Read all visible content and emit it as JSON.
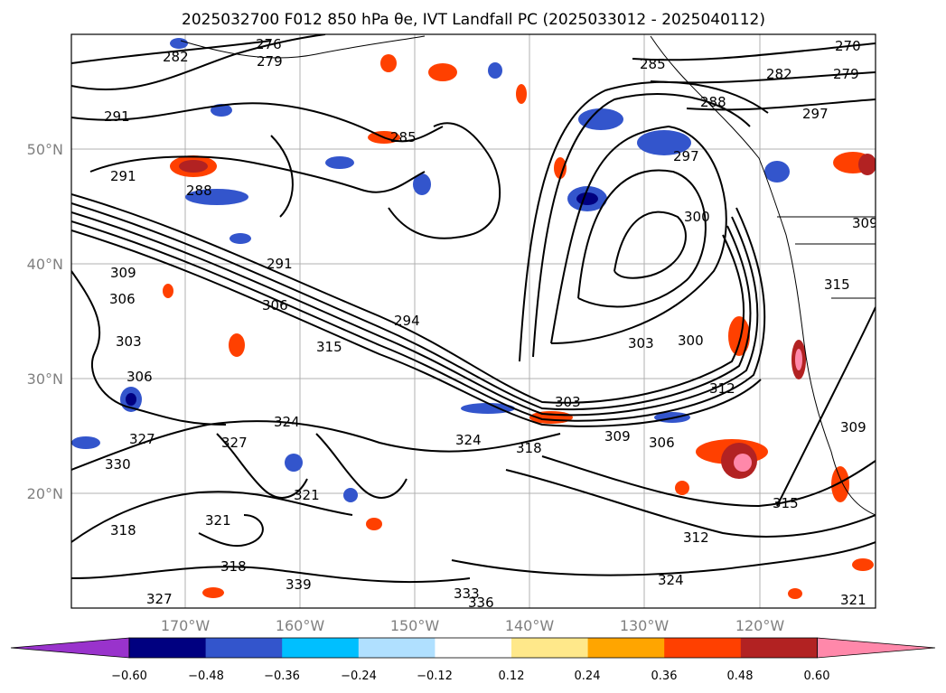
{
  "title": "2025032700 F012 850 hPa θe, IVT Landfall PC (2025033012 - 2025040112)",
  "map": {
    "lat_labels": [
      "50°N",
      "40°N",
      "30°N",
      "20°N"
    ],
    "lon_labels": [
      "170°W",
      "160°W",
      "150°W",
      "140°W",
      "130°W",
      "120°W"
    ],
    "contour_labels": [
      "276",
      "282",
      "279",
      "291",
      "285",
      "291",
      "288",
      "291",
      "306",
      "294",
      "315",
      "306",
      "303",
      "300",
      "303",
      "312",
      "309",
      "306",
      "324",
      "318",
      "327",
      "324",
      "321",
      "327",
      "330",
      "318",
      "321",
      "318",
      "339",
      "336",
      "333",
      "327",
      "324",
      "315",
      "312",
      "321",
      "309",
      "306",
      "309",
      "303",
      "300",
      "297",
      "288",
      "285",
      "282",
      "279",
      "270",
      "297",
      "309",
      "315"
    ]
  },
  "colorbar": {
    "tick_labels": [
      "−0.60",
      "−0.48",
      "−0.36",
      "−0.24",
      "−0.12",
      "0.12",
      "0.24",
      "0.36",
      "0.48",
      "0.60"
    ],
    "colors": [
      "#9933cc",
      "#000080",
      "#3355cc",
      "#00bfff",
      "#b0e0ff",
      "#ffffff",
      "#ffe88a",
      "#ffa500",
      "#ff4000",
      "#b22222",
      "#ff88aa"
    ]
  }
}
